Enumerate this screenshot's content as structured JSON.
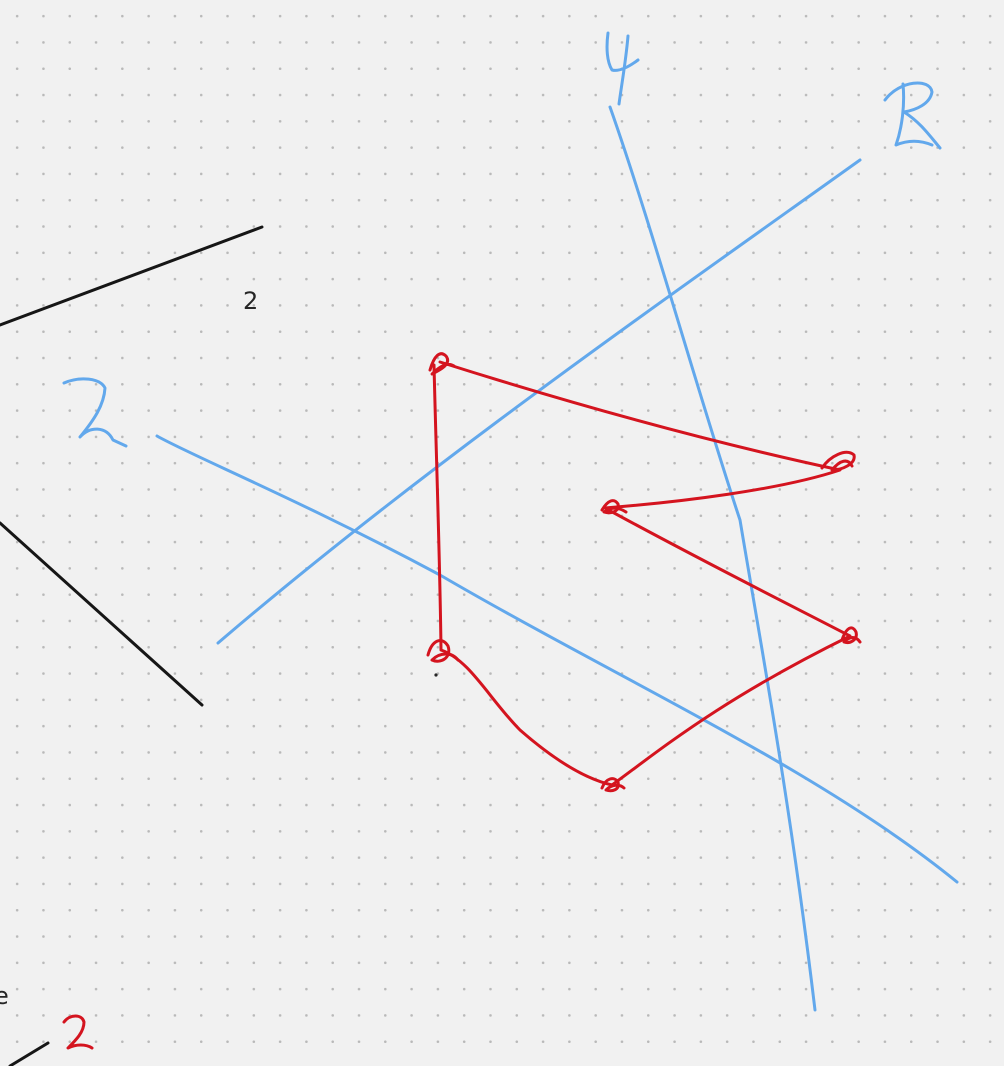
{
  "canvas": {
    "background": "#f1f1f1",
    "dot_color": "#b9b9b9",
    "ink_colors": {
      "blue": "#62a8ec",
      "red": "#d4141f",
      "black": "#161616"
    }
  },
  "typed_text": {
    "number_label": "2",
    "partial_word": "e"
  },
  "handwritten_labels": {
    "top_line": "4",
    "upper_right_line": "R",
    "left_line": "2",
    "bottom_red": "2"
  }
}
